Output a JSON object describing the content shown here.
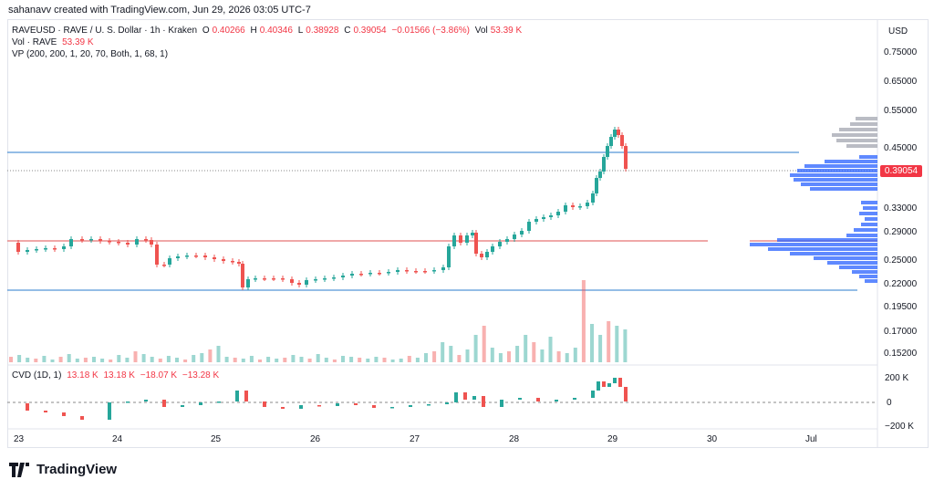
{
  "attribution": "sahanavv created with TradingView.com, Jun 29, 2026 03:05 UTC-7",
  "legend": {
    "symbol": "RAVEUSD · RAVE / U. S. Dollar · 1h · Kraken",
    "o_label": "O",
    "o": "0.40266",
    "h_label": "H",
    "h": "0.40346",
    "l_label": "L",
    "l": "0.38928",
    "c_label": "C",
    "c": "0.39054",
    "change": "−0.01566 (−3.86%)",
    "vol_label": "Vol",
    "vol": "53.39 K",
    "vol_row_label": "Vol · RAVE",
    "vol_row_value": "53.39 K",
    "vp_row": "VP (200, 200, 1, 20, 70, Both, 1, 68, 1)"
  },
  "price_scale": {
    "currency": "USD",
    "ticks": [
      "0.75000",
      "0.65000",
      "0.55000",
      "0.45000",
      "0.33000",
      "0.29000",
      "0.25000",
      "0.22000",
      "0.19500",
      "0.17000",
      "0.15200"
    ],
    "last_price": "0.39054"
  },
  "cvd": {
    "label": "CVD (1D, 1)",
    "values": [
      "13.18 K",
      "13.18 K",
      "−18.07 K",
      "−13.28 K"
    ],
    "ticks": [
      "200 K",
      "0",
      "−200 K"
    ]
  },
  "time_axis": [
    "23",
    "24",
    "25",
    "26",
    "27",
    "28",
    "29",
    "30",
    "Jul"
  ],
  "brand": "TradingView",
  "colors": {
    "up": "#26a69a",
    "down": "#ef5350",
    "vp_blue": "#2962ff",
    "vp_gray": "#b2b5be",
    "level_blue": "#2a7bcc",
    "level_red": "#e57373"
  }
}
